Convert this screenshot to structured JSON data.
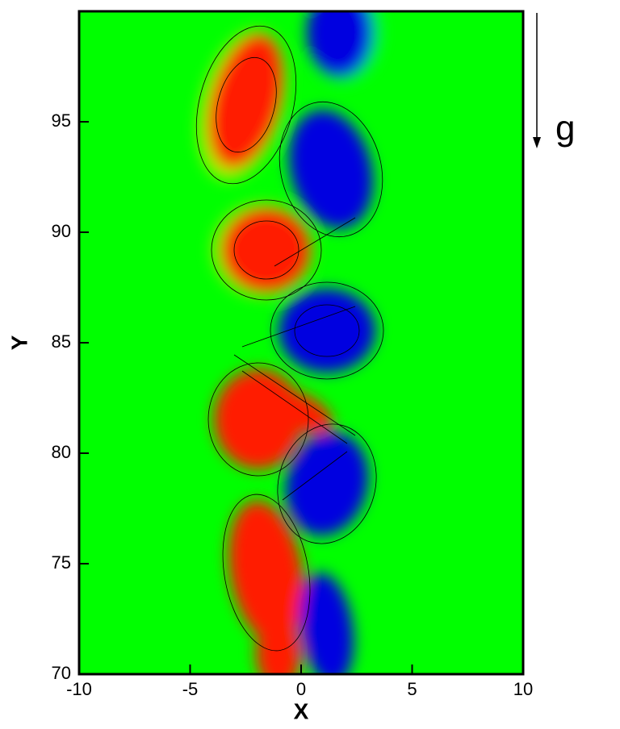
{
  "chart_data": {
    "type": "contour",
    "x_label": "X",
    "y_label": "Y",
    "annotation": "g",
    "xlim": [
      -10,
      10
    ],
    "ylim": [
      70,
      100
    ],
    "xticks": [
      -10,
      -5,
      0,
      5,
      10
    ],
    "yticks": [
      70,
      75,
      80,
      85,
      90,
      95
    ]
  }
}
